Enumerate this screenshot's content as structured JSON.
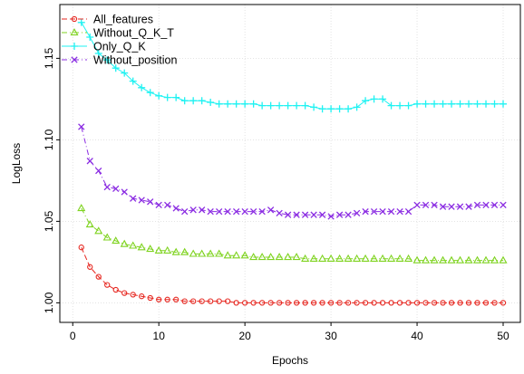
{
  "chart_data": {
    "type": "line",
    "title": "",
    "xlabel": "Epochs",
    "ylabel": "LogLoss",
    "xlim": [
      -1.5,
      52
    ],
    "ylim": [
      0.988,
      1.183
    ],
    "xticks": [
      0,
      10,
      20,
      30,
      40,
      50
    ],
    "yticks": [
      1.0,
      1.05,
      1.1,
      1.15
    ],
    "ytick_labels": [
      "1.00",
      "1.05",
      "1.10",
      "1.15"
    ],
    "grid": true,
    "legend_position": "top-left",
    "x": [
      1,
      2,
      3,
      4,
      5,
      6,
      7,
      8,
      9,
      10,
      11,
      12,
      13,
      14,
      15,
      16,
      17,
      18,
      19,
      20,
      21,
      22,
      23,
      24,
      25,
      26,
      27,
      28,
      29,
      30,
      31,
      32,
      33,
      34,
      35,
      36,
      37,
      38,
      39,
      40,
      41,
      42,
      43,
      44,
      45,
      46,
      47,
      48,
      49,
      50
    ],
    "series": [
      {
        "name": "All_features",
        "color": "#e6261f",
        "marker": "circle",
        "dash": "6,3",
        "values": [
          1.034,
          1.022,
          1.016,
          1.011,
          1.008,
          1.006,
          1.005,
          1.004,
          1.003,
          1.002,
          1.002,
          1.002,
          1.001,
          1.001,
          1.001,
          1.001,
          1.001,
          1.001,
          1.0,
          1.0,
          1.0,
          1.0,
          1.0,
          1.0,
          1.0,
          1.0,
          1.0,
          1.0,
          1.0,
          1.0,
          1.0,
          1.0,
          1.0,
          1.0,
          1.0,
          1.0,
          1.0,
          1.0,
          1.0,
          1.0,
          1.0,
          1.0,
          1.0,
          1.0,
          1.0,
          1.0,
          1.0,
          1.0,
          1.0,
          1.0
        ]
      },
      {
        "name": "Without_Q_K_T",
        "color": "#7fd320",
        "marker": "triangle",
        "dash": "6,3,1,3",
        "values": [
          1.058,
          1.048,
          1.044,
          1.04,
          1.038,
          1.036,
          1.035,
          1.034,
          1.033,
          1.032,
          1.032,
          1.031,
          1.031,
          1.03,
          1.03,
          1.03,
          1.03,
          1.029,
          1.029,
          1.029,
          1.028,
          1.028,
          1.028,
          1.028,
          1.028,
          1.028,
          1.027,
          1.027,
          1.027,
          1.027,
          1.027,
          1.027,
          1.027,
          1.027,
          1.027,
          1.027,
          1.027,
          1.027,
          1.027,
          1.026,
          1.026,
          1.026,
          1.026,
          1.026,
          1.026,
          1.026,
          1.026,
          1.026,
          1.026,
          1.026
        ]
      },
      {
        "name": "Only_Q_K",
        "color": "#1ff2f2",
        "marker": "plus",
        "dash": "",
        "values": [
          1.172,
          1.163,
          1.153,
          1.149,
          1.144,
          1.141,
          1.136,
          1.132,
          1.129,
          1.127,
          1.126,
          1.126,
          1.124,
          1.124,
          1.124,
          1.123,
          1.122,
          1.122,
          1.122,
          1.122,
          1.122,
          1.121,
          1.121,
          1.121,
          1.121,
          1.121,
          1.121,
          1.12,
          1.119,
          1.119,
          1.119,
          1.119,
          1.12,
          1.124,
          1.125,
          1.125,
          1.121,
          1.121,
          1.121,
          1.122,
          1.122,
          1.122,
          1.122,
          1.122,
          1.122,
          1.122,
          1.122,
          1.122,
          1.122,
          1.122
        ]
      },
      {
        "name": "Without_position",
        "color": "#8a2be2",
        "marker": "x",
        "dash": "6,3,1,3",
        "values": [
          1.108,
          1.087,
          1.081,
          1.071,
          1.07,
          1.068,
          1.064,
          1.063,
          1.062,
          1.06,
          1.06,
          1.058,
          1.056,
          1.057,
          1.057,
          1.056,
          1.056,
          1.056,
          1.056,
          1.056,
          1.056,
          1.056,
          1.057,
          1.055,
          1.054,
          1.054,
          1.054,
          1.054,
          1.054,
          1.053,
          1.054,
          1.054,
          1.055,
          1.056,
          1.056,
          1.056,
          1.056,
          1.056,
          1.056,
          1.06,
          1.06,
          1.06,
          1.059,
          1.059,
          1.059,
          1.059,
          1.06,
          1.06,
          1.06,
          1.06
        ]
      }
    ]
  }
}
